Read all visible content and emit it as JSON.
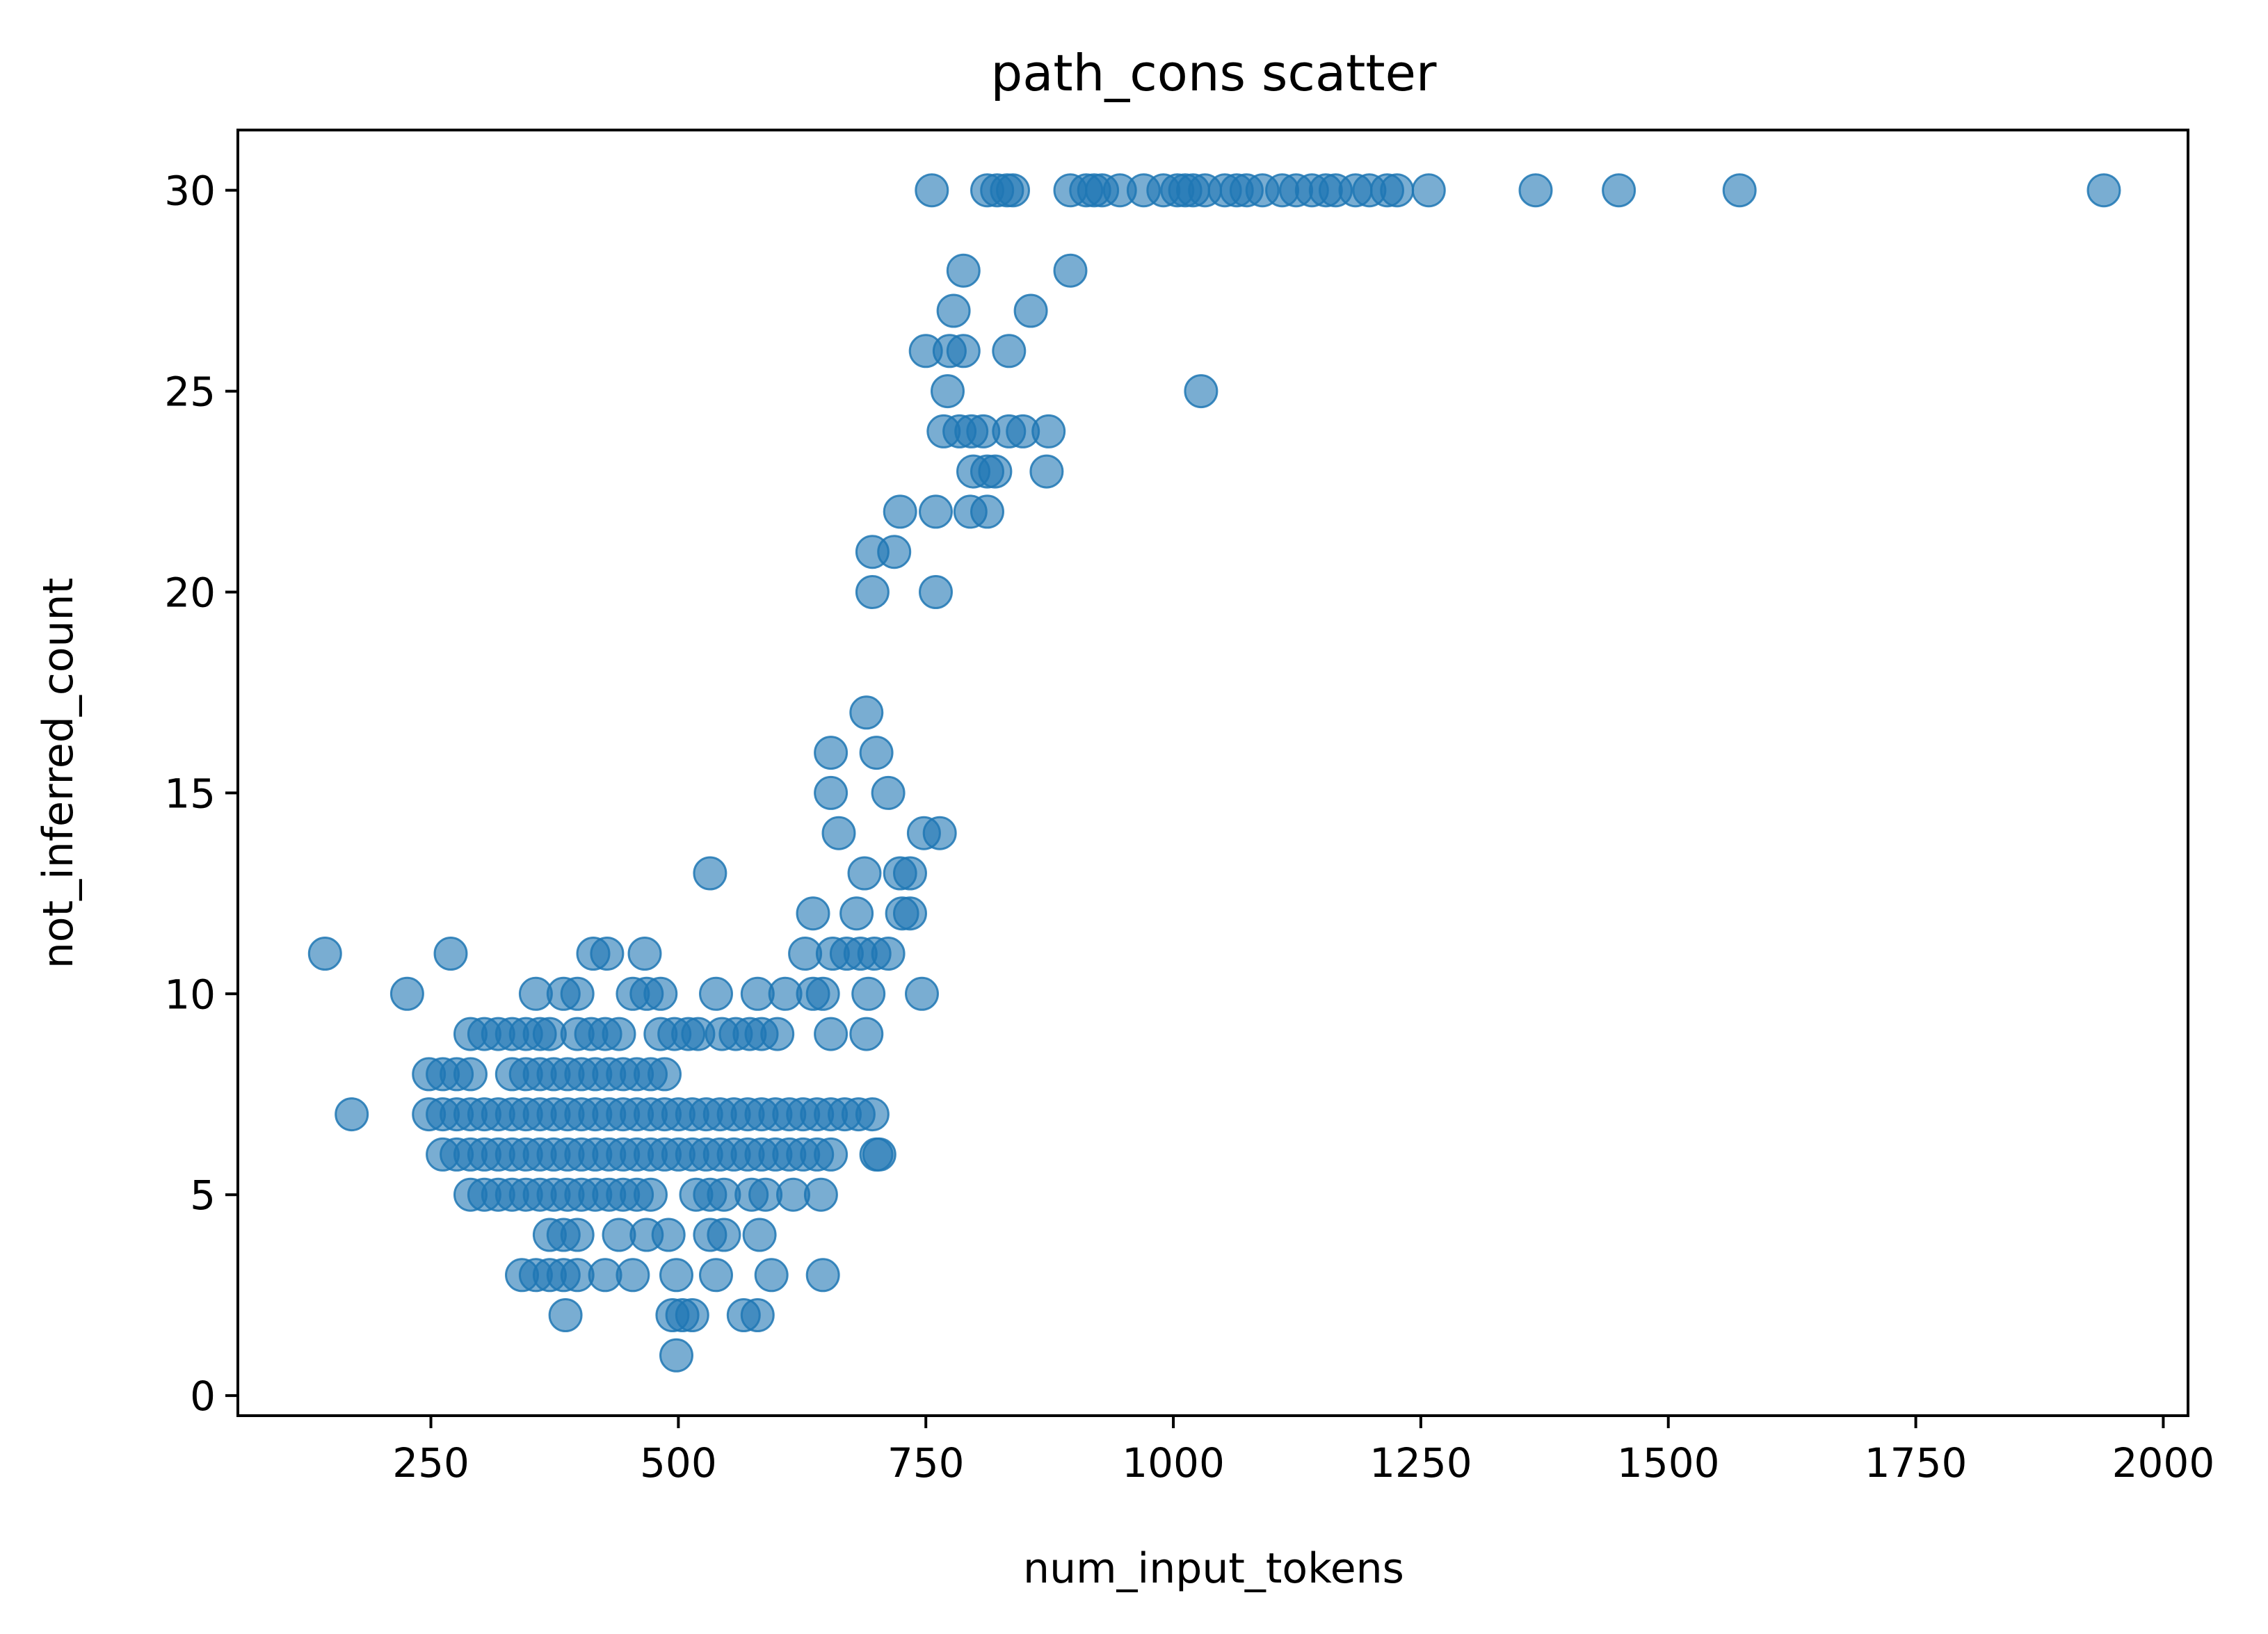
{
  "chart_data": {
    "type": "scatter",
    "title": "path_cons scatter",
    "xlabel": "num_input_tokens",
    "ylabel": "not_inferred_count",
    "xlim": [
      55,
      2025
    ],
    "ylim": [
      -0.5,
      31.5
    ],
    "xticks": [
      250,
      500,
      750,
      1000,
      1250,
      1500,
      1750,
      2000
    ],
    "yticks": [
      0,
      5,
      10,
      15,
      20,
      25,
      30
    ],
    "grid": false,
    "legend": "none",
    "marker_color": "#1f77b4",
    "marker_alpha": 0.6,
    "points": [
      [
        143,
        11
      ],
      [
        170,
        7
      ],
      [
        226,
        10
      ],
      [
        270,
        11
      ],
      [
        248,
        8
      ],
      [
        262,
        8
      ],
      [
        276,
        8
      ],
      [
        290,
        8
      ],
      [
        248,
        7
      ],
      [
        262,
        7
      ],
      [
        276,
        7
      ],
      [
        290,
        7
      ],
      [
        304,
        7
      ],
      [
        318,
        7
      ],
      [
        262,
        6
      ],
      [
        276,
        6
      ],
      [
        290,
        6
      ],
      [
        304,
        6
      ],
      [
        318,
        6
      ],
      [
        290,
        5
      ],
      [
        304,
        5
      ],
      [
        318,
        5
      ],
      [
        290,
        9
      ],
      [
        304,
        9
      ],
      [
        318,
        9
      ],
      [
        332,
        9
      ],
      [
        346,
        9
      ],
      [
        360,
        9
      ],
      [
        332,
        8
      ],
      [
        346,
        8
      ],
      [
        360,
        8
      ],
      [
        374,
        8
      ],
      [
        388,
        8
      ],
      [
        402,
        8
      ],
      [
        416,
        8
      ],
      [
        430,
        8
      ],
      [
        444,
        8
      ],
      [
        458,
        8
      ],
      [
        472,
        8
      ],
      [
        486,
        8
      ],
      [
        332,
        7
      ],
      [
        346,
        7
      ],
      [
        360,
        7
      ],
      [
        374,
        7
      ],
      [
        388,
        7
      ],
      [
        402,
        7
      ],
      [
        416,
        7
      ],
      [
        430,
        7
      ],
      [
        444,
        7
      ],
      [
        458,
        7
      ],
      [
        472,
        7
      ],
      [
        486,
        7
      ],
      [
        500,
        7
      ],
      [
        514,
        7
      ],
      [
        528,
        7
      ],
      [
        542,
        7
      ],
      [
        556,
        7
      ],
      [
        570,
        7
      ],
      [
        584,
        7
      ],
      [
        598,
        7
      ],
      [
        612,
        7
      ],
      [
        626,
        7
      ],
      [
        640,
        7
      ],
      [
        654,
        7
      ],
      [
        668,
        7
      ],
      [
        682,
        7
      ],
      [
        696,
        7
      ],
      [
        332,
        6
      ],
      [
        346,
        6
      ],
      [
        360,
        6
      ],
      [
        374,
        6
      ],
      [
        388,
        6
      ],
      [
        402,
        6
      ],
      [
        416,
        6
      ],
      [
        430,
        6
      ],
      [
        444,
        6
      ],
      [
        458,
        6
      ],
      [
        472,
        6
      ],
      [
        486,
        6
      ],
      [
        500,
        6
      ],
      [
        514,
        6
      ],
      [
        528,
        6
      ],
      [
        542,
        6
      ],
      [
        556,
        6
      ],
      [
        570,
        6
      ],
      [
        584,
        6
      ],
      [
        598,
        6
      ],
      [
        612,
        6
      ],
      [
        626,
        6
      ],
      [
        640,
        6
      ],
      [
        654,
        6
      ],
      [
        700,
        6
      ],
      [
        703,
        6
      ],
      [
        332,
        5
      ],
      [
        346,
        5
      ],
      [
        360,
        5
      ],
      [
        374,
        5
      ],
      [
        388,
        5
      ],
      [
        402,
        5
      ],
      [
        416,
        5
      ],
      [
        430,
        5
      ],
      [
        444,
        5
      ],
      [
        458,
        5
      ],
      [
        472,
        5
      ],
      [
        518,
        5
      ],
      [
        532,
        5
      ],
      [
        546,
        5
      ],
      [
        574,
        5
      ],
      [
        588,
        5
      ],
      [
        616,
        5
      ],
      [
        644,
        5
      ],
      [
        370,
        4
      ],
      [
        384,
        4
      ],
      [
        398,
        4
      ],
      [
        440,
        4
      ],
      [
        468,
        4
      ],
      [
        490,
        4
      ],
      [
        532,
        4
      ],
      [
        546,
        4
      ],
      [
        582,
        4
      ],
      [
        342,
        3
      ],
      [
        356,
        3
      ],
      [
        370,
        3
      ],
      [
        384,
        3
      ],
      [
        398,
        3
      ],
      [
        426,
        3
      ],
      [
        454,
        3
      ],
      [
        498,
        3
      ],
      [
        538,
        3
      ],
      [
        594,
        3
      ],
      [
        646,
        3
      ],
      [
        386,
        2
      ],
      [
        494,
        2
      ],
      [
        504,
        2
      ],
      [
        514,
        2
      ],
      [
        566,
        2
      ],
      [
        580,
        2
      ],
      [
        498,
        1
      ],
      [
        370,
        9
      ],
      [
        398,
        9
      ],
      [
        412,
        9
      ],
      [
        426,
        9
      ],
      [
        440,
        9
      ],
      [
        482,
        9
      ],
      [
        496,
        9
      ],
      [
        510,
        9
      ],
      [
        520,
        9
      ],
      [
        544,
        9
      ],
      [
        558,
        9
      ],
      [
        572,
        9
      ],
      [
        584,
        9
      ],
      [
        600,
        9
      ],
      [
        654,
        9
      ],
      [
        690,
        9
      ],
      [
        356,
        10
      ],
      [
        384,
        10
      ],
      [
        398,
        10
      ],
      [
        454,
        10
      ],
      [
        468,
        10
      ],
      [
        482,
        10
      ],
      [
        538,
        10
      ],
      [
        580,
        10
      ],
      [
        608,
        10
      ],
      [
        636,
        10
      ],
      [
        646,
        10
      ],
      [
        692,
        10
      ],
      [
        746,
        10
      ],
      [
        414,
        11
      ],
      [
        428,
        11
      ],
      [
        466,
        11
      ],
      [
        628,
        11
      ],
      [
        656,
        11
      ],
      [
        670,
        11
      ],
      [
        684,
        11
      ],
      [
        698,
        11
      ],
      [
        712,
        11
      ],
      [
        636,
        12
      ],
      [
        680,
        12
      ],
      [
        726,
        12
      ],
      [
        734,
        12
      ],
      [
        532,
        13
      ],
      [
        688,
        13
      ],
      [
        724,
        13
      ],
      [
        734,
        13
      ],
      [
        662,
        14
      ],
      [
        748,
        14
      ],
      [
        764,
        14
      ],
      [
        654,
        15
      ],
      [
        712,
        15
      ],
      [
        654,
        16
      ],
      [
        700,
        16
      ],
      [
        690,
        17
      ],
      [
        696,
        20
      ],
      [
        760,
        20
      ],
      [
        696,
        21
      ],
      [
        718,
        21
      ],
      [
        724,
        22
      ],
      [
        760,
        22
      ],
      [
        795,
        22
      ],
      [
        812,
        22
      ],
      [
        798,
        23
      ],
      [
        812,
        23
      ],
      [
        820,
        23
      ],
      [
        872,
        23
      ],
      [
        768,
        24
      ],
      [
        784,
        24
      ],
      [
        796,
        24
      ],
      [
        808,
        24
      ],
      [
        834,
        24
      ],
      [
        848,
        24
      ],
      [
        874,
        24
      ],
      [
        772,
        25
      ],
      [
        1028,
        25
      ],
      [
        750,
        26
      ],
      [
        774,
        26
      ],
      [
        788,
        26
      ],
      [
        834,
        26
      ],
      [
        778,
        27
      ],
      [
        856,
        27
      ],
      [
        788,
        28
      ],
      [
        896,
        28
      ],
      [
        756,
        30
      ],
      [
        812,
        30
      ],
      [
        822,
        30
      ],
      [
        832,
        30
      ],
      [
        838,
        30
      ],
      [
        896,
        30
      ],
      [
        912,
        30
      ],
      [
        920,
        30
      ],
      [
        928,
        30
      ],
      [
        946,
        30
      ],
      [
        970,
        30
      ],
      [
        990,
        30
      ],
      [
        1004,
        30
      ],
      [
        1012,
        30
      ],
      [
        1020,
        30
      ],
      [
        1032,
        30
      ],
      [
        1052,
        30
      ],
      [
        1064,
        30
      ],
      [
        1074,
        30
      ],
      [
        1090,
        30
      ],
      [
        1110,
        30
      ],
      [
        1124,
        30
      ],
      [
        1140,
        30
      ],
      [
        1154,
        30
      ],
      [
        1164,
        30
      ],
      [
        1184,
        30
      ],
      [
        1198,
        30
      ],
      [
        1216,
        30
      ],
      [
        1226,
        30
      ],
      [
        1258,
        30
      ],
      [
        1366,
        30
      ],
      [
        1450,
        30
      ],
      [
        1572,
        30
      ],
      [
        1940,
        30
      ]
    ]
  }
}
